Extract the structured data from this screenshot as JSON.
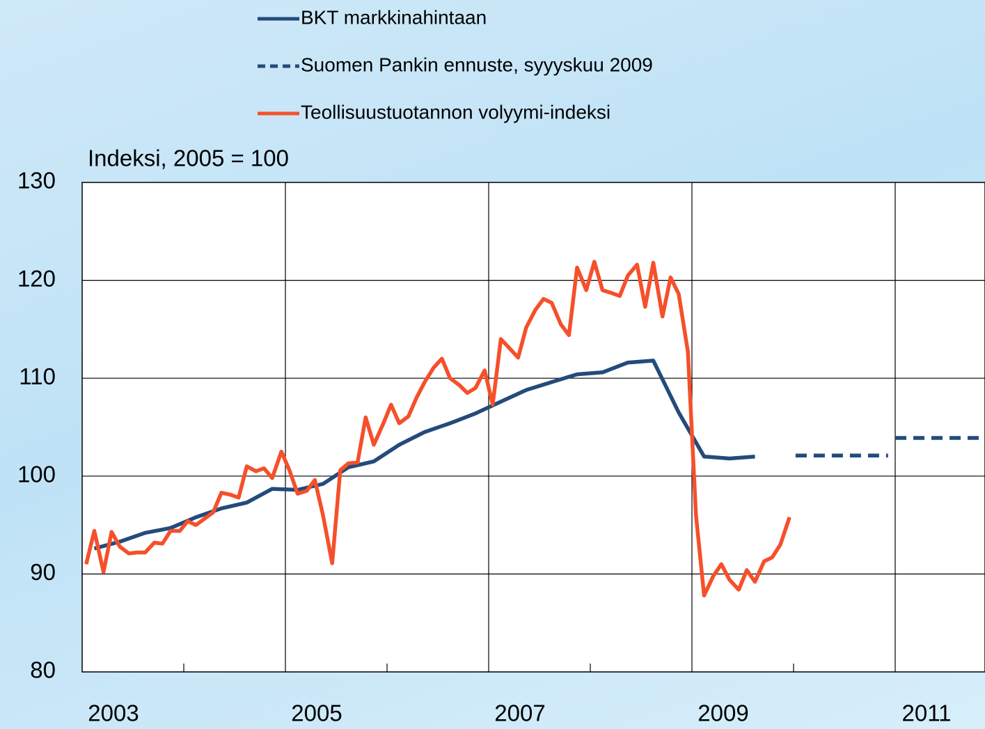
{
  "chart_data": {
    "type": "line",
    "y_axis_title": "Indeksi, 2005 = 100",
    "xlim": [
      2003,
      2011.88
    ],
    "xticks": [
      2003,
      2005,
      2007,
      2009,
      2011
    ],
    "xminor_ticks": [
      2004,
      2006,
      2008,
      2010
    ],
    "xgrid": [
      2005,
      2007,
      2009,
      2011
    ],
    "ylim": [
      80,
      130
    ],
    "yticks": [
      80,
      90,
      100,
      110,
      120,
      130
    ],
    "grid": true,
    "series": [
      {
        "name": "BKT markkinahintaan",
        "color": "#234b7c",
        "dashed": false,
        "x": [
          2003.12,
          2003.37,
          2003.62,
          2003.87,
          2004.12,
          2004.37,
          2004.62,
          2004.87,
          2005.12,
          2005.37,
          2005.62,
          2005.87,
          2006.12,
          2006.37,
          2006.62,
          2006.87,
          2007.12,
          2007.37,
          2007.62,
          2007.87,
          2008.12,
          2008.37,
          2008.62,
          2008.87,
          2009.12,
          2009.37,
          2009.62
        ],
        "values": [
          92.6,
          93.3,
          94.2,
          94.7,
          95.8,
          96.7,
          97.3,
          98.7,
          98.6,
          99.2,
          100.9,
          101.5,
          103.2,
          104.5,
          105.4,
          106.4,
          107.6,
          108.8,
          109.6,
          110.4,
          110.6,
          111.6,
          111.8,
          106.5,
          102.0,
          101.8,
          102.0
        ]
      },
      {
        "name": "Suomen Pankin ennuste, syyyskuu 2009",
        "color": "#234b7c",
        "dashed": true,
        "x": [
          2010.02,
          2010.93,
          null,
          2011.0,
          2011.88
        ],
        "values": [
          102.1,
          102.1,
          null,
          103.9,
          103.9
        ]
      },
      {
        "name": "Teollisuustuotannon volyymi-indeksi",
        "color": "#f5502b",
        "dashed": false,
        "x": [
          2003.04,
          2003.12,
          2003.21,
          2003.29,
          2003.37,
          2003.46,
          2003.54,
          2003.62,
          2003.71,
          2003.79,
          2003.87,
          2003.96,
          2004.04,
          2004.12,
          2004.21,
          2004.29,
          2004.37,
          2004.46,
          2004.54,
          2004.62,
          2004.71,
          2004.79,
          2004.87,
          2004.96,
          2005.04,
          2005.12,
          2005.21,
          2005.29,
          2005.37,
          2005.46,
          2005.54,
          2005.62,
          2005.71,
          2005.79,
          2005.87,
          2005.96,
          2006.04,
          2006.12,
          2006.21,
          2006.29,
          2006.37,
          2006.46,
          2006.54,
          2006.62,
          2006.71,
          2006.79,
          2006.87,
          2006.96,
          2007.04,
          2007.12,
          2007.21,
          2007.29,
          2007.37,
          2007.46,
          2007.54,
          2007.62,
          2007.71,
          2007.79,
          2007.87,
          2007.96,
          2008.04,
          2008.12,
          2008.21,
          2008.29,
          2008.37,
          2008.46,
          2008.54,
          2008.62,
          2008.71,
          2008.79,
          2008.87,
          2008.96,
          2009.04,
          2009.12,
          2009.21,
          2009.29,
          2009.37,
          2009.46,
          2009.54,
          2009.62,
          2009.71,
          2009.79,
          2009.87,
          2009.96
        ],
        "values": [
          91.0,
          94.4,
          90.2,
          94.3,
          92.8,
          92.1,
          92.2,
          92.2,
          93.2,
          93.1,
          94.4,
          94.4,
          95.4,
          95.0,
          95.7,
          96.3,
          98.3,
          98.1,
          97.8,
          101.0,
          100.5,
          100.8,
          99.8,
          102.5,
          100.6,
          98.2,
          98.5,
          99.6,
          96.0,
          91.1,
          100.6,
          101.3,
          101.4,
          106.0,
          103.2,
          105.3,
          107.3,
          105.4,
          106.1,
          108.0,
          109.6,
          111.1,
          112.0,
          110.0,
          109.3,
          108.5,
          109.0,
          110.8,
          107.3,
          114.0,
          113.0,
          112.1,
          115.2,
          117.0,
          118.1,
          117.7,
          115.5,
          114.4,
          121.3,
          119.0,
          121.9,
          119.0,
          118.7,
          118.4,
          120.5,
          121.6,
          117.3,
          121.8,
          116.3,
          120.3,
          118.6,
          112.7,
          96.0,
          87.8,
          89.8,
          91.0,
          89.4,
          88.4,
          90.4,
          89.2,
          91.3,
          91.7,
          93.0,
          95.8
        ]
      }
    ]
  }
}
